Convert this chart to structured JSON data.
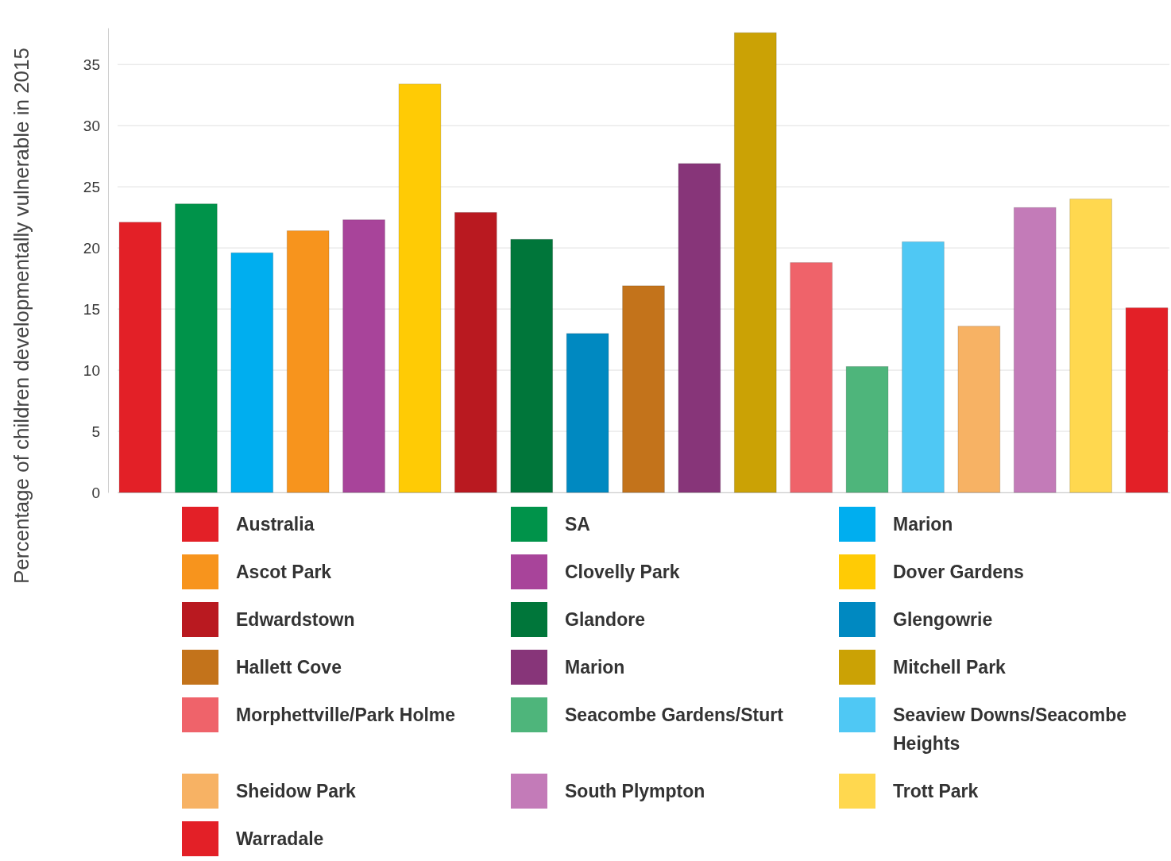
{
  "chart_data": {
    "type": "bar",
    "ylabel": "Percentage of children developmentally vulnerable in 2015",
    "categories": [
      null
    ],
    "series": [
      {
        "name": "Australia",
        "color": "#e32027",
        "values": [
          22.1
        ]
      },
      {
        "name": "SA",
        "color": "#00934a",
        "values": [
          23.6
        ]
      },
      {
        "name": "Marion",
        "color": "#00aeef",
        "values": [
          19.6
        ]
      },
      {
        "name": "Ascot Park",
        "color": "#f7941d",
        "values": [
          21.4
        ]
      },
      {
        "name": "Clovelly Park",
        "color": "#a8449a",
        "values": [
          22.3
        ]
      },
      {
        "name": "Dover Gardens",
        "color": "#ffcb05",
        "values": [
          33.4
        ]
      },
      {
        "name": "Edwardstown",
        "color": "#b91920",
        "values": [
          22.9
        ]
      },
      {
        "name": "Glandore",
        "color": "#00763a",
        "values": [
          20.7
        ]
      },
      {
        "name": "Glengowrie",
        "color": "#0089c1",
        "values": [
          13.0
        ]
      },
      {
        "name": "Hallett Cove",
        "color": "#c3731b",
        "values": [
          16.9
        ]
      },
      {
        "name": "Marion",
        "color": "#873579",
        "values": [
          26.9
        ]
      },
      {
        "name": "Mitchell Park",
        "color": "#cba205",
        "values": [
          37.6
        ]
      },
      {
        "name": "Morphettville/Park Holme",
        "color": "#ef636a",
        "values": [
          18.8
        ]
      },
      {
        "name": "Seacombe Gardens/Sturt",
        "color": "#4eb57b",
        "values": [
          10.3
        ]
      },
      {
        "name": "Seaview Downs/Seacombe Heights",
        "color": "#4fc8f4",
        "values": [
          20.5
        ]
      },
      {
        "name": "Sheidow Park",
        "color": "#f7b264",
        "values": [
          13.6
        ]
      },
      {
        "name": "South Plympton",
        "color": "#c37bb8",
        "values": [
          23.3
        ]
      },
      {
        "name": "Trott Park",
        "color": "#ffd84f",
        "values": [
          24.0
        ]
      },
      {
        "name": "Warradale",
        "color": "#e32027",
        "values": [
          15.1
        ]
      }
    ],
    "ylim": [
      0,
      38
    ],
    "yticks": [
      0,
      5,
      10,
      15,
      20,
      25,
      30,
      35
    ],
    "grid": "y",
    "legend": "bottom",
    "tick_labels": "y"
  }
}
